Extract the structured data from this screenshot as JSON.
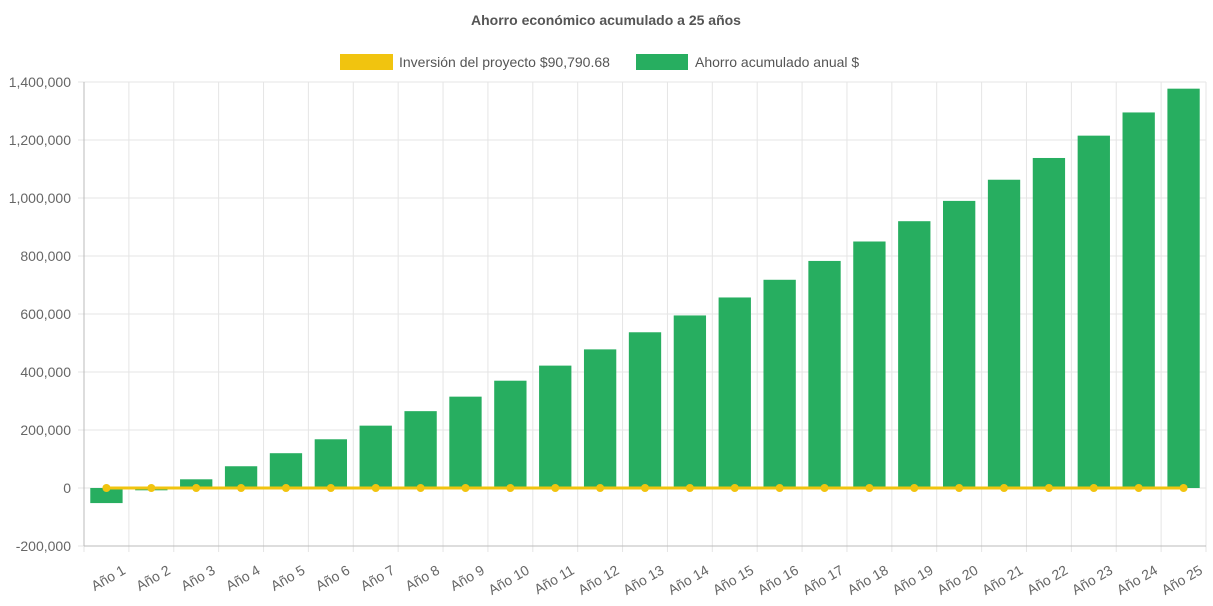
{
  "chart_data": {
    "type": "bar",
    "title": "Ahorro económico acumulado a 25 años",
    "categories": [
      "Año 1",
      "Año 2",
      "Año 3",
      "Año 4",
      "Año 5",
      "Año 6",
      "Año 7",
      "Año 8",
      "Año 9",
      "Año 10",
      "Año 11",
      "Año 12",
      "Año 13",
      "Año 14",
      "Año 15",
      "Año 16",
      "Año 17",
      "Año 18",
      "Año 19",
      "Año 20",
      "Año 21",
      "Año 22",
      "Año 23",
      "Año 24",
      "Año 25"
    ],
    "series": [
      {
        "name": "Inversión del proyecto $90,790.68",
        "type": "line",
        "color": "#f1c40f",
        "values": [
          0,
          0,
          0,
          0,
          0,
          0,
          0,
          0,
          0,
          0,
          0,
          0,
          0,
          0,
          0,
          0,
          0,
          0,
          0,
          0,
          0,
          0,
          0,
          0,
          0
        ]
      },
      {
        "name": "Ahorro acumulado anual $",
        "type": "bar",
        "color": "#27ae60",
        "values": [
          -52000,
          -8000,
          30000,
          75000,
          120000,
          168000,
          215000,
          265000,
          315000,
          370000,
          422000,
          478000,
          537000,
          595000,
          657000,
          718000,
          783000,
          850000,
          920000,
          990000,
          1063000,
          1138000,
          1215000,
          1295000,
          1377000
        ]
      }
    ],
    "ylim": [
      -200000,
      1400000
    ],
    "yticks": [
      "1,400,000",
      "1,200,000",
      "1,000,000",
      "800,000",
      "600,000",
      "400,000",
      "200,000",
      "0",
      "-200,000"
    ],
    "grid": true,
    "legend_position": "top-center",
    "xlabel": "",
    "ylabel": ""
  }
}
